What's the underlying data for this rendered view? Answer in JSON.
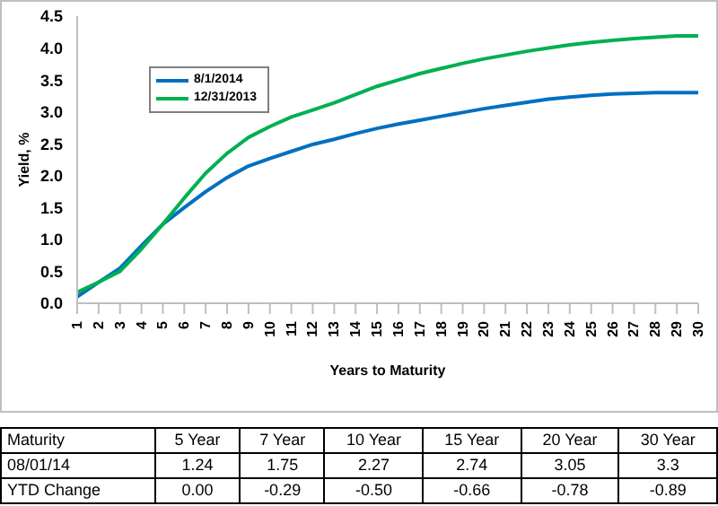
{
  "chart_data": {
    "type": "line",
    "xlabel": "Years to Maturity",
    "ylabel": "Yield, %",
    "categories": [
      "1",
      "2",
      "3",
      "4",
      "5",
      "6",
      "7",
      "8",
      "9",
      "10",
      "11",
      "12",
      "13",
      "14",
      "15",
      "16",
      "17",
      "18",
      "19",
      "20",
      "21",
      "22",
      "23",
      "24",
      "25",
      "26",
      "27",
      "28",
      "29",
      "30"
    ],
    "series": [
      {
        "name": "8/1/2014",
        "color": "#0070c0",
        "values": [
          0.1,
          0.33,
          0.55,
          0.9,
          1.24,
          1.5,
          1.75,
          1.97,
          2.15,
          2.27,
          2.38,
          2.49,
          2.57,
          2.66,
          2.74,
          2.81,
          2.87,
          2.93,
          2.99,
          3.05,
          3.1,
          3.15,
          3.2,
          3.23,
          3.26,
          3.28,
          3.29,
          3.3,
          3.3,
          3.3
        ]
      },
      {
        "name": "12/31/2013",
        "color": "#00b050",
        "values": [
          0.17,
          0.33,
          0.5,
          0.85,
          1.24,
          1.65,
          2.04,
          2.35,
          2.6,
          2.77,
          2.92,
          3.03,
          3.14,
          3.27,
          3.4,
          3.5,
          3.6,
          3.68,
          3.76,
          3.83,
          3.89,
          3.95,
          4.0,
          4.05,
          4.09,
          4.12,
          4.15,
          4.17,
          4.19,
          4.19
        ]
      }
    ],
    "ylim": [
      0,
      4.5
    ],
    "yticks": [
      {
        "value": 0,
        "label": "0.0"
      },
      {
        "value": 0.5,
        "label": "0.5"
      },
      {
        "value": 1,
        "label": "1.0"
      },
      {
        "value": 1.5,
        "label": "1.5"
      },
      {
        "value": 2,
        "label": "2.0"
      },
      {
        "value": 2.5,
        "label": "2.5"
      },
      {
        "value": 3,
        "label": "3.0"
      },
      {
        "value": 3.5,
        "label": "3.5"
      },
      {
        "value": 4,
        "label": "4.0"
      },
      {
        "value": 4.5,
        "label": "4.5"
      }
    ],
    "legend": "top left",
    "marker": "none",
    "line_style": "solid",
    "annotations": [
      "Maturity",
      "5 Year",
      "7 Year",
      "10 Year",
      "15 Year",
      "20 Year",
      "30 Year",
      "08/01/14",
      "1.24",
      "1.75",
      "2.27",
      "2.74",
      "3.05",
      "3.3",
      "YTD Change",
      "0.00",
      "-0.29",
      "-0.50",
      "-0.66",
      "-0.78",
      "-0.89"
    ]
  }
}
